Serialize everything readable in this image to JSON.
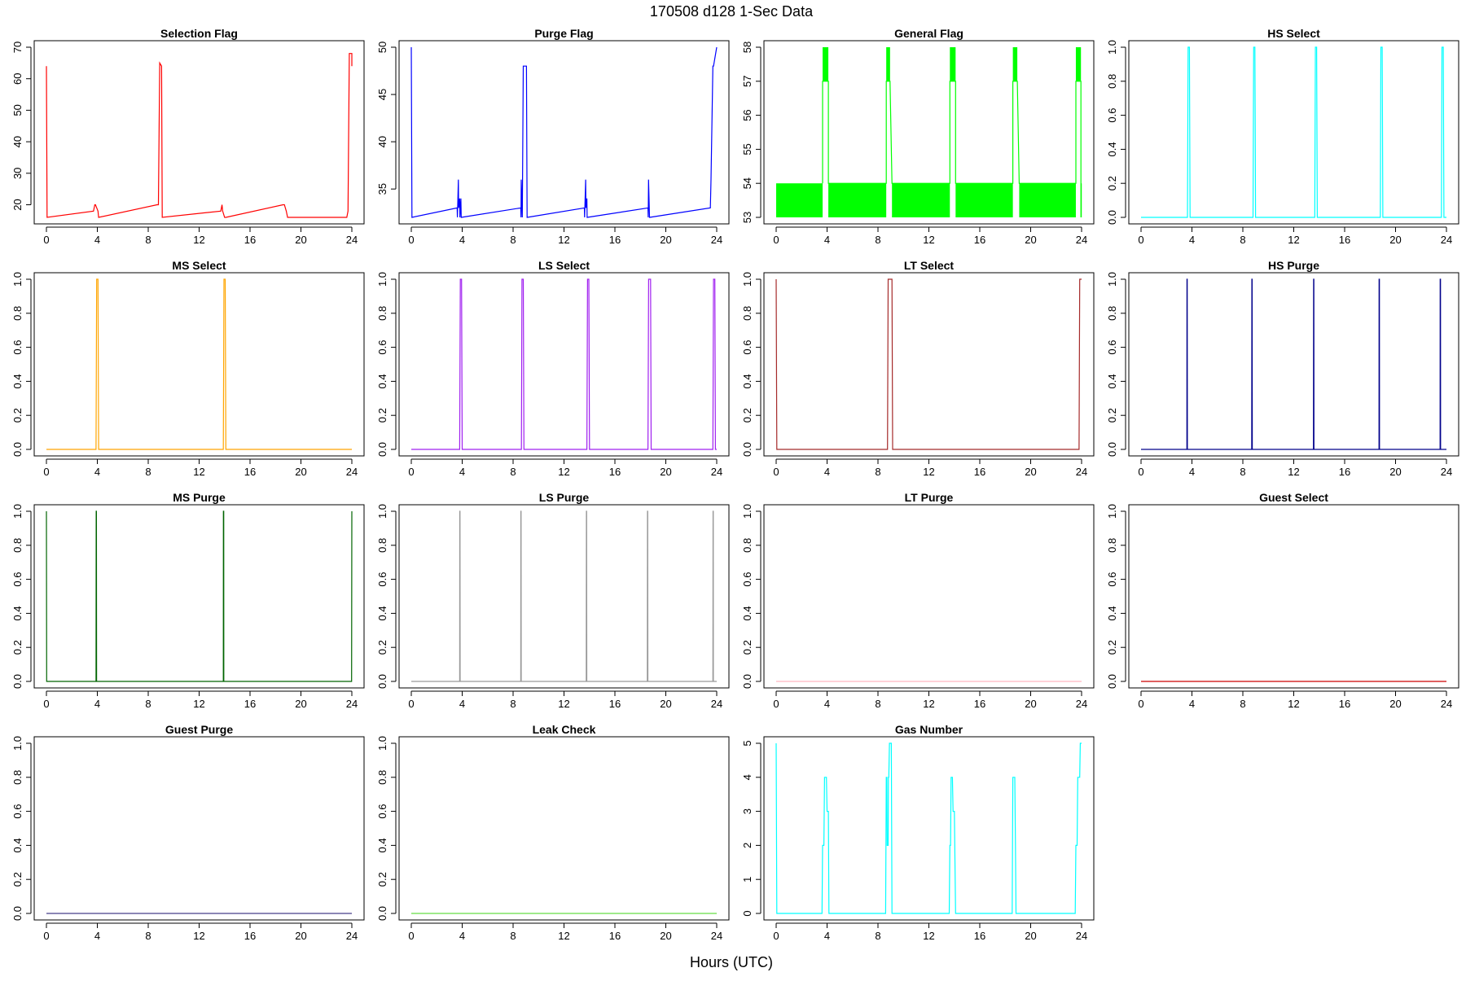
{
  "figure": {
    "title": "170508   d128   1-Sec Data",
    "xlabel": "Hours (UTC)"
  },
  "chart_data": [
    {
      "type": "line",
      "title": "Selection Flag",
      "color": "#ff0000",
      "xlim": [
        0,
        24
      ],
      "xticks": [
        0,
        4,
        8,
        12,
        16,
        20,
        24
      ],
      "ylim": [
        16,
        70
      ],
      "yticks": [
        20,
        30,
        40,
        50,
        60,
        70
      ],
      "series": [
        {
          "x": [
            0,
            0.05,
            3.7,
            3.8,
            3.85,
            4.05,
            4.1,
            8.7,
            8.8,
            8.9,
            9.05,
            9.1,
            13.7,
            13.8,
            13.85,
            14.0,
            14.1,
            18.6,
            18.7,
            18.85,
            18.95,
            23.6,
            23.7,
            23.8,
            24.0,
            24.0
          ],
          "y": [
            64,
            16,
            18,
            20,
            20,
            18,
            16,
            20,
            20,
            65,
            64,
            16,
            18,
            20,
            18,
            16,
            16,
            20,
            20,
            18,
            16,
            16,
            18,
            68,
            68,
            64
          ]
        }
      ]
    },
    {
      "type": "line",
      "title": "Purge Flag",
      "color": "#0000ff",
      "xlim": [
        0,
        24
      ],
      "xticks": [
        0,
        4,
        8,
        12,
        16,
        20,
        24
      ],
      "ylim": [
        32,
        50
      ],
      "yticks": [
        35,
        40,
        45,
        50
      ],
      "series": [
        {
          "x": [
            0,
            0.05,
            3.6,
            3.62,
            3.64,
            3.7,
            3.72,
            3.8,
            3.82,
            3.9,
            3.92,
            8.6,
            8.62,
            8.64,
            8.7,
            8.72,
            8.8,
            8.85,
            9.05,
            9.1,
            13.6,
            13.62,
            13.64,
            13.7,
            13.72,
            13.8,
            13.82,
            18.6,
            18.62,
            18.64,
            18.7,
            18.72,
            23.5,
            23.55,
            23.7,
            23.75,
            24.0
          ],
          "y": [
            50,
            32,
            33,
            32,
            33,
            36,
            33,
            34,
            32,
            34,
            32,
            33,
            32,
            36,
            33,
            32,
            48,
            48,
            48,
            32,
            33,
            32,
            33,
            36,
            33,
            34,
            32,
            33,
            32,
            36,
            33,
            32,
            33,
            36,
            48,
            48,
            50
          ]
        }
      ]
    },
    {
      "type": "line",
      "title": "General Flag",
      "color": "#00ff00",
      "xlim": [
        0,
        24
      ],
      "xticks": [
        0,
        4,
        8,
        12,
        16,
        20,
        24
      ],
      "ylim": [
        53,
        58
      ],
      "yticks": [
        53,
        54,
        55,
        56,
        57,
        58
      ],
      "bands": [
        {
          "x0": 0,
          "x1": 3.65,
          "y0": 53,
          "y1": 54
        },
        {
          "x0": 4.1,
          "x1": 8.65,
          "y0": 53,
          "y1": 54
        },
        {
          "x0": 9.1,
          "x1": 13.65,
          "y0": 53,
          "y1": 54
        },
        {
          "x0": 14.1,
          "x1": 18.6,
          "y0": 53,
          "y1": 54
        },
        {
          "x0": 19.1,
          "x1": 23.55,
          "y0": 53,
          "y1": 54
        },
        {
          "x0": 23.95,
          "x1": 24.0,
          "y0": 53,
          "y1": 54
        },
        {
          "x0": 3.65,
          "x1": 4.1,
          "y0": 57,
          "y1": 58
        },
        {
          "x0": 8.65,
          "x1": 8.95,
          "y0": 57,
          "y1": 58
        },
        {
          "x0": 13.65,
          "x1": 14.1,
          "y0": 57,
          "y1": 58
        },
        {
          "x0": 18.6,
          "x1": 18.95,
          "y0": 57,
          "y1": 58
        },
        {
          "x0": 23.55,
          "x1": 23.95,
          "y0": 57,
          "y1": 58
        }
      ],
      "series": [
        {
          "x": [
            3.65,
            3.65,
            4.1,
            4.1,
            8.65,
            8.65,
            8.95,
            9.1,
            13.65,
            13.65,
            14.1,
            14.1,
            18.6,
            18.6,
            18.95,
            19.1,
            23.55,
            23.55,
            23.95,
            23.95
          ],
          "y": [
            54,
            57,
            57,
            54,
            54,
            57,
            57,
            54,
            54,
            57,
            57,
            54,
            54,
            57,
            57,
            54,
            54,
            57,
            57,
            53
          ]
        }
      ]
    },
    {
      "type": "line",
      "title": "HS Select",
      "color": "#00ffff",
      "xlim": [
        0,
        24
      ],
      "xticks": [
        0,
        4,
        8,
        12,
        16,
        20,
        24
      ],
      "ylim": [
        0,
        1
      ],
      "yticks": [
        0.0,
        0.2,
        0.4,
        0.6,
        0.8,
        1.0
      ],
      "series": [
        {
          "x": [
            0,
            3.65,
            3.7,
            3.8,
            3.85,
            8.8,
            8.85,
            8.95,
            9.0,
            13.65,
            13.7,
            13.8,
            13.85,
            18.8,
            18.85,
            18.95,
            19.0,
            23.6,
            23.65,
            23.75,
            23.8,
            24.0
          ],
          "y": [
            0,
            0,
            1,
            1,
            0,
            0,
            1,
            1,
            0,
            0,
            1,
            1,
            0,
            0,
            1,
            1,
            0,
            0,
            1,
            1,
            0,
            0
          ]
        }
      ]
    },
    {
      "type": "line",
      "title": "MS Select",
      "color": "#ffa500",
      "xlim": [
        0,
        24
      ],
      "xticks": [
        0,
        4,
        8,
        12,
        16,
        20,
        24
      ],
      "ylim": [
        0,
        1
      ],
      "yticks": [
        0.0,
        0.2,
        0.4,
        0.6,
        0.8,
        1.0
      ],
      "series": [
        {
          "x": [
            0,
            3.9,
            3.95,
            4.05,
            4.1,
            13.9,
            13.95,
            14.05,
            14.1,
            24.0
          ],
          "y": [
            0,
            0,
            1,
            1,
            0,
            0,
            1,
            1,
            0,
            0
          ]
        }
      ]
    },
    {
      "type": "line",
      "title": "LS Select",
      "color": "#a020f0",
      "xlim": [
        0,
        24
      ],
      "xticks": [
        0,
        4,
        8,
        12,
        16,
        20,
        24
      ],
      "ylim": [
        0,
        1
      ],
      "yticks": [
        0.0,
        0.2,
        0.4,
        0.6,
        0.8,
        1.0
      ],
      "series": [
        {
          "x": [
            0,
            3.8,
            3.85,
            3.95,
            4.0,
            8.65,
            8.7,
            8.8,
            8.85,
            13.8,
            13.85,
            13.95,
            14.0,
            18.6,
            18.65,
            18.8,
            18.85,
            23.7,
            23.75,
            23.85,
            23.9,
            24.0
          ],
          "y": [
            0,
            0,
            1,
            1,
            0,
            0,
            1,
            1,
            0,
            0,
            1,
            1,
            0,
            0,
            1,
            1,
            0,
            0,
            1,
            1,
            0,
            0
          ]
        }
      ]
    },
    {
      "type": "line",
      "title": "LT Select",
      "color": "#a52a2a",
      "xlim": [
        0,
        24
      ],
      "xticks": [
        0,
        4,
        8,
        12,
        16,
        20,
        24
      ],
      "ylim": [
        0,
        1
      ],
      "yticks": [
        0.0,
        0.2,
        0.4,
        0.6,
        0.8,
        1.0
      ],
      "series": [
        {
          "x": [
            0,
            0.05,
            8.75,
            8.8,
            9.1,
            9.15,
            23.8,
            23.85,
            24.0
          ],
          "y": [
            1,
            0,
            0,
            1,
            1,
            0,
            0,
            1,
            1
          ]
        }
      ]
    },
    {
      "type": "line",
      "title": "HS Purge",
      "color": "#00008b",
      "xlim": [
        0,
        24
      ],
      "xticks": [
        0,
        4,
        8,
        12,
        16,
        20,
        24
      ],
      "ylim": [
        0,
        1
      ],
      "yticks": [
        0.0,
        0.2,
        0.4,
        0.6,
        0.8,
        1.0
      ],
      "series": [
        {
          "x": [
            0,
            3.6,
            3.61,
            3.63,
            3.64,
            8.7,
            8.71,
            8.73,
            8.74,
            13.55,
            13.56,
            13.58,
            13.59,
            18.7,
            18.71,
            18.73,
            18.74,
            23.5,
            23.51,
            23.53,
            23.54,
            24.0
          ],
          "y": [
            0,
            0,
            1,
            1,
            0,
            0,
            1,
            1,
            0,
            0,
            1,
            1,
            0,
            0,
            1,
            1,
            0,
            0,
            1,
            1,
            0,
            0
          ]
        }
      ]
    },
    {
      "type": "line",
      "title": "MS Purge",
      "color": "#006400",
      "xlim": [
        0,
        24
      ],
      "xticks": [
        0,
        4,
        8,
        12,
        16,
        20,
        24
      ],
      "ylim": [
        0,
        1
      ],
      "yticks": [
        0.0,
        0.2,
        0.4,
        0.6,
        0.8,
        1.0
      ],
      "series": [
        {
          "x": [
            0,
            0.02,
            3.9,
            3.91,
            3.93,
            3.94,
            13.9,
            13.91,
            13.93,
            13.94,
            23.98,
            24.0
          ],
          "y": [
            1,
            0,
            0,
            1,
            1,
            0,
            0,
            1,
            1,
            0,
            0,
            1
          ]
        }
      ]
    },
    {
      "type": "line",
      "title": "LS Purge",
      "color": "#999999",
      "xlim": [
        0,
        24
      ],
      "xticks": [
        0,
        4,
        8,
        12,
        16,
        20,
        24
      ],
      "ylim": [
        0,
        1
      ],
      "yticks": [
        0.0,
        0.2,
        0.4,
        0.6,
        0.8,
        1.0
      ],
      "series": [
        {
          "x": [
            0,
            3.8,
            3.81,
            3.83,
            3.84,
            8.6,
            8.61,
            8.63,
            8.64,
            13.75,
            13.76,
            13.78,
            13.79,
            18.55,
            18.56,
            18.58,
            18.59,
            23.7,
            23.71,
            23.73,
            23.74,
            24.0
          ],
          "y": [
            0,
            0,
            1,
            1,
            0,
            0,
            1,
            1,
            0,
            0,
            1,
            1,
            0,
            0,
            1,
            1,
            0,
            0,
            1,
            1,
            0,
            0
          ]
        }
      ]
    },
    {
      "type": "line",
      "title": "LT Purge",
      "color": "#ffb6c1",
      "xlim": [
        0,
        24
      ],
      "xticks": [
        0,
        4,
        8,
        12,
        16,
        20,
        24
      ],
      "ylim": [
        0,
        1
      ],
      "yticks": [
        0.0,
        0.2,
        0.4,
        0.6,
        0.8,
        1.0
      ],
      "series": [
        {
          "x": [
            0,
            24
          ],
          "y": [
            0,
            0
          ]
        }
      ]
    },
    {
      "type": "line",
      "title": "Guest Select",
      "color": "#cc0000",
      "xlim": [
        0,
        24
      ],
      "xticks": [
        0,
        4,
        8,
        12,
        16,
        20,
        24
      ],
      "ylim": [
        0,
        1
      ],
      "yticks": [
        0.0,
        0.2,
        0.4,
        0.6,
        0.8,
        1.0
      ],
      "series": [
        {
          "x": [
            0,
            24
          ],
          "y": [
            0,
            0
          ]
        }
      ]
    },
    {
      "type": "line",
      "title": "Guest Purge",
      "color": "#483d8b",
      "xlim": [
        0,
        24
      ],
      "xticks": [
        0,
        4,
        8,
        12,
        16,
        20,
        24
      ],
      "ylim": [
        0,
        1
      ],
      "yticks": [
        0.0,
        0.2,
        0.4,
        0.6,
        0.8,
        1.0
      ],
      "series": [
        {
          "x": [
            0,
            24
          ],
          "y": [
            0,
            0
          ]
        }
      ]
    },
    {
      "type": "line",
      "title": "Leak Check",
      "color": "#66dd44",
      "xlim": [
        0,
        24
      ],
      "xticks": [
        0,
        4,
        8,
        12,
        16,
        20,
        24
      ],
      "ylim": [
        0,
        1
      ],
      "yticks": [
        0.0,
        0.2,
        0.4,
        0.6,
        0.8,
        1.0
      ],
      "series": [
        {
          "x": [
            0,
            24
          ],
          "y": [
            0,
            0
          ]
        }
      ]
    },
    {
      "type": "line",
      "title": "Gas Number",
      "color": "#00ffff",
      "xlim": [
        0,
        24
      ],
      "xticks": [
        0,
        4,
        8,
        12,
        16,
        20,
        24
      ],
      "ylim": [
        0,
        5
      ],
      "yticks": [
        0,
        1,
        2,
        3,
        4,
        5
      ],
      "series": [
        {
          "x": [
            0,
            0.05,
            3.6,
            3.65,
            3.75,
            3.8,
            3.95,
            4.0,
            4.1,
            4.15,
            8.6,
            8.65,
            8.7,
            8.72,
            8.8,
            8.82,
            8.85,
            8.9,
            9.05,
            9.1,
            13.6,
            13.65,
            13.7,
            13.75,
            13.85,
            13.9,
            14.0,
            14.1,
            18.55,
            18.6,
            18.75,
            18.8,
            18.85,
            23.5,
            23.55,
            23.65,
            23.7,
            23.85,
            23.9,
            24.0
          ],
          "y": [
            5,
            0,
            0,
            2,
            2,
            4,
            4,
            3,
            3,
            0,
            0,
            4,
            4,
            2,
            2,
            4,
            4,
            5,
            5,
            0,
            0,
            2,
            2,
            4,
            4,
            3,
            3,
            0,
            0,
            4,
            4,
            2,
            0,
            0,
            2,
            2,
            4,
            4,
            5,
            5
          ]
        }
      ]
    }
  ]
}
